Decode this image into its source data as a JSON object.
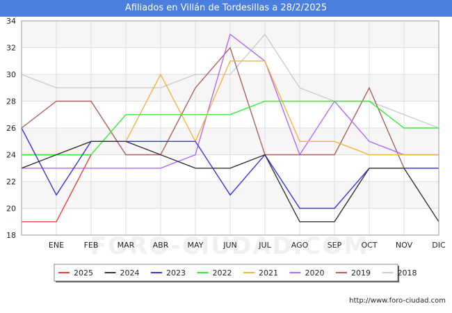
{
  "chart_data": {
    "type": "line",
    "title": "Afiliados en Villán de Tordesillas a 28/2/2025",
    "categories": [
      "",
      "ENE",
      "FEB",
      "MAR",
      "ABR",
      "MAY",
      "JUN",
      "JUL",
      "AGO",
      "SEP",
      "OCT",
      "NOV",
      "DIC"
    ],
    "ylim": [
      18,
      34
    ],
    "yticks": [
      18,
      20,
      22,
      24,
      26,
      28,
      30,
      32,
      34
    ],
    "grid": true,
    "legend_position": "bottom",
    "series": [
      {
        "name": "2025",
        "color": "#ee3b3b",
        "values": [
          19,
          19,
          24,
          null,
          null,
          null,
          null,
          null,
          null,
          null,
          null,
          null,
          null
        ]
      },
      {
        "name": "2024",
        "color": "#333333",
        "values": [
          23,
          24,
          25,
          25,
          24,
          23,
          23,
          24,
          19,
          19,
          23,
          23,
          19
        ]
      },
      {
        "name": "2023",
        "color": "#3333ee",
        "values": [
          26,
          21,
          25,
          25,
          25,
          25,
          21,
          24,
          20,
          20,
          23,
          23,
          23
        ]
      },
      {
        "name": "2022",
        "color": "#33ee33",
        "values": [
          24,
          24,
          24,
          27,
          27,
          27,
          27,
          28,
          28,
          28,
          28,
          26,
          26
        ]
      },
      {
        "name": "2021",
        "color": "#f4b43c",
        "values": [
          24,
          24,
          25,
          25,
          30,
          25,
          31,
          31,
          25,
          25,
          24,
          24,
          24
        ]
      },
      {
        "name": "2020",
        "color": "#b266ff",
        "values": [
          23,
          23,
          23,
          23,
          23,
          24,
          33,
          31,
          24,
          28,
          25,
          24,
          24
        ]
      },
      {
        "name": "2019",
        "color": "#b05e5e",
        "values": [
          26,
          28,
          28,
          24,
          24,
          29,
          32,
          24,
          24,
          24,
          29,
          23,
          23
        ]
      },
      {
        "name": "2018",
        "color": "#cccccc",
        "values": [
          30,
          29,
          29,
          29,
          29,
          30,
          30,
          33,
          29,
          28,
          28,
          27,
          26
        ]
      }
    ],
    "watermark": "FORO-CIUDAD.COM"
  },
  "footer": {
    "url": "http://www.foro-ciudad.com"
  }
}
